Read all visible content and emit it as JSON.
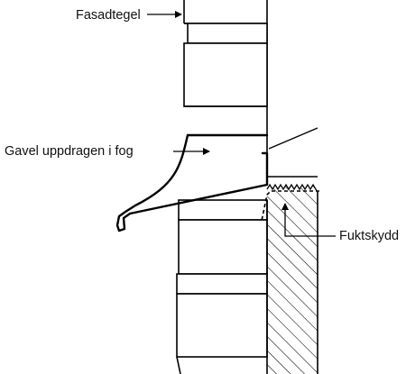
{
  "diagram": {
    "labels": {
      "facade_brick": "Fasadtegel",
      "flashing": "Gavel uppdragen i fog",
      "moisture_barrier": "Fuktskydd"
    },
    "colors": {
      "stroke": "#000000",
      "background": "#ffffff",
      "text": "#111111"
    }
  }
}
